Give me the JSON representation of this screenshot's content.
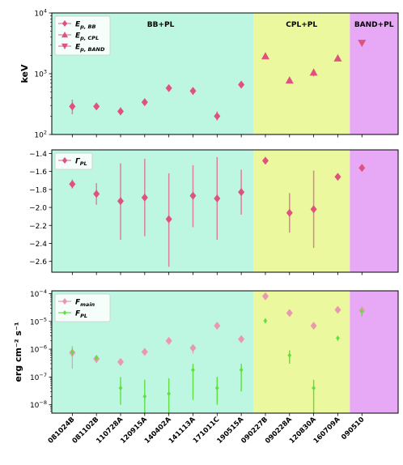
{
  "colors": {
    "bb_pl": "#bdf7e2",
    "cpl_pl": "#ecf89d",
    "band_pl": "#e7a8f6",
    "main_marker": "#e0527e",
    "main_err": "#d9819c",
    "fmain_marker": "#eb97b1",
    "fpl": "#5fe03e"
  },
  "regions": [
    {
      "label": "BB+PL",
      "from": -0.85,
      "to": 7.5
    },
    {
      "label": "CPL+PL",
      "from": 7.5,
      "to": 11.5
    },
    {
      "label": "BAND+PL",
      "from": 11.5,
      "to": 13.5
    }
  ],
  "categories": [
    "081024B",
    "081102B",
    "110728A",
    "120915A",
    "140402A",
    "141113A",
    "171011C",
    "190515A",
    "090227B",
    "090228A",
    "120830A",
    "160709A",
    "090510"
  ],
  "chart_data": [
    {
      "type": "scatter",
      "ylabel": "keV",
      "yscale": "log",
      "ylim": [
        100,
        10000
      ],
      "yticks": [
        100,
        1000,
        10000
      ],
      "ytick_labels": [
        [
          "10",
          "2"
        ],
        [
          "10",
          "3"
        ],
        [
          "10",
          "4"
        ]
      ],
      "legend": [
        {
          "sym": "E",
          "sub": "p, BB",
          "marker": "diamond"
        },
        {
          "sym": "E",
          "sub": "p, CPL",
          "marker": "triangle-up"
        },
        {
          "sym": "E",
          "sub": "p, BAND",
          "marker": "triangle-down"
        }
      ],
      "legend_placement": "top-left",
      "series": [
        {
          "name": "E_p,BB",
          "marker": "diamond",
          "x": [
            0,
            1,
            2,
            3,
            4,
            5,
            6,
            7
          ],
          "values": [
            290,
            290,
            240,
            340,
            580,
            520,
            200,
            660
          ],
          "err_low": [
            215,
            265,
            210,
            315,
            540,
            450,
            170,
            610
          ],
          "err_high": [
            375,
            315,
            280,
            370,
            640,
            590,
            240,
            730
          ]
        },
        {
          "name": "E_p,CPL",
          "marker": "triangle-up",
          "x": [
            8,
            9,
            10,
            11
          ],
          "values": [
            1950,
            780,
            1050,
            1800
          ],
          "err_low": [
            1890,
            740,
            900,
            1740
          ],
          "err_high": [
            2010,
            820,
            1180,
            1860
          ]
        },
        {
          "name": "E_p,BAND",
          "marker": "triangle-down",
          "x": [
            12
          ],
          "values": [
            3200
          ],
          "err_low": [
            3150
          ],
          "err_high": [
            3250
          ]
        }
      ]
    },
    {
      "type": "scatter",
      "ylabel": "",
      "yscale": "linear",
      "ylim": [
        -2.72,
        -1.36
      ],
      "yticks": [
        -2.6,
        -2.4,
        -2.2,
        -2.0,
        -1.8,
        -1.6,
        -1.4
      ],
      "ytick_labels": [
        [
          "−2.6",
          ""
        ],
        [
          "−2.4",
          ""
        ],
        [
          "−2.2",
          ""
        ],
        [
          "−2.0",
          ""
        ],
        [
          "−1.8",
          ""
        ],
        [
          "−1.6",
          ""
        ],
        [
          "−1.4",
          ""
        ]
      ],
      "legend": [
        {
          "sym": "Γ",
          "sub": "PL",
          "marker": "diamond"
        }
      ],
      "legend_placement": "top-left",
      "series": [
        {
          "name": "Γ_PL",
          "marker": "diamond",
          "x": [
            0,
            1,
            2,
            3,
            4,
            5,
            6,
            7,
            8,
            9,
            10,
            11,
            12
          ],
          "values": [
            -1.74,
            -1.85,
            -1.93,
            -1.89,
            -2.13,
            -1.87,
            -1.9,
            -1.83,
            -1.48,
            -2.06,
            -2.02,
            -1.66,
            -1.56
          ],
          "err_low": [
            -1.79,
            -1.97,
            -2.36,
            -2.32,
            -2.66,
            -2.22,
            -2.36,
            -2.08,
            -1.5,
            -2.28,
            -2.45,
            -1.69,
            -1.6
          ],
          "err_high": [
            -1.69,
            -1.73,
            -1.51,
            -1.46,
            -1.62,
            -1.53,
            -1.44,
            -1.58,
            -1.46,
            -1.84,
            -1.59,
            -1.63,
            -1.52
          ]
        }
      ]
    },
    {
      "type": "scatter",
      "ylabel": "erg cm⁻² s⁻¹",
      "yscale": "log",
      "ylim": [
        5e-09,
        0.000126
      ],
      "yticks": [
        1e-08,
        1e-07,
        1e-06,
        1e-05,
        0.0001
      ],
      "ytick_labels": [
        [
          "10",
          "−8"
        ],
        [
          "10",
          "−7"
        ],
        [
          "10",
          "−6"
        ],
        [
          "10",
          "−5"
        ],
        [
          "10",
          "−4"
        ]
      ],
      "legend": [
        {
          "sym": "F",
          "sub": "main",
          "marker": "diamond"
        },
        {
          "sym": "F",
          "sub": "PL",
          "marker": "diamond"
        }
      ],
      "legend_placement": "top-left",
      "series": [
        {
          "name": "F_main",
          "marker": "diamond",
          "x": [
            0,
            1,
            2,
            3,
            4,
            5,
            6,
            7,
            8,
            9,
            10,
            11,
            12
          ],
          "values": [
            7.5e-07,
            4.5e-07,
            3.5e-07,
            8e-07,
            2e-06,
            1.1e-06,
            7e-06,
            2.3e-06,
            8e-05,
            2e-05,
            7e-06,
            2.6e-05,
            2.5e-05
          ],
          "err_low": [
            2e-07,
            3.2e-07,
            2.6e-07,
            6.5e-07,
            1.5e-06,
            7e-07,
            6.2e-06,
            2e-06,
            7.5e-05,
            1.9e-05,
            6.5e-06,
            2.5e-05,
            2e-05
          ],
          "err_high": [
            1.3e-06,
            6e-07,
            4.5e-07,
            9.5e-07,
            2.7e-06,
            1.5e-06,
            7.8e-06,
            2.6e-06,
            8.5e-05,
            2.1e-05,
            7.5e-06,
            2.8e-05,
            3e-05
          ]
        },
        {
          "name": "F_PL",
          "marker": "diamond",
          "x": [
            0,
            1,
            2,
            3,
            4,
            5,
            6,
            7,
            8,
            9,
            10,
            11,
            12
          ],
          "values": [
            8e-07,
            5e-07,
            4e-08,
            2e-08,
            2.5e-08,
            1.8e-07,
            4e-08,
            1.8e-07,
            1.05e-05,
            6e-07,
            4e-08,
            2.5e-06,
            2.3e-05
          ],
          "err_low": [
            5.5e-07,
            4e-07,
            1e-08,
            5e-09,
            5e-09,
            1.5e-08,
            1e-08,
            3e-08,
            8.5e-06,
            3e-07,
            5e-09,
            2e-06,
            1.5e-05
          ],
          "err_high": [
            1.1e-06,
            6e-07,
            1e-07,
            8e-08,
            9e-08,
            3e-07,
            1e-07,
            3e-07,
            1.3e-05,
            9e-07,
            8e-08,
            3e-06,
            3e-05
          ]
        }
      ]
    }
  ]
}
